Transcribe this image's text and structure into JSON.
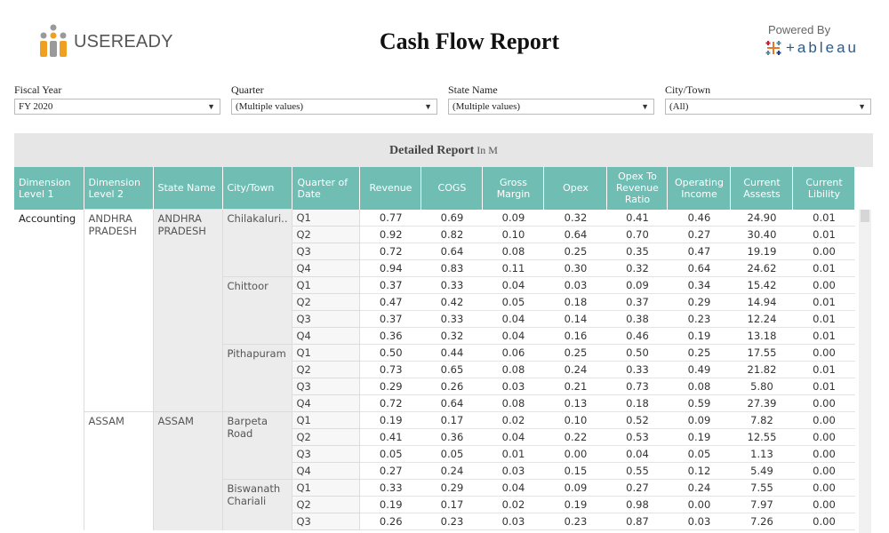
{
  "header": {
    "logo_text": "USEREADY",
    "title": "Cash Flow Report",
    "powered_by": "Powered By",
    "tableau": "+ableau"
  },
  "filters": [
    {
      "label": "Fiscal Year",
      "value": "FY 2020"
    },
    {
      "label": "Quarter",
      "value": "(Multiple values)"
    },
    {
      "label": "State Name",
      "value": "(Multiple values)"
    },
    {
      "label": "City/Town",
      "value": "(All)"
    }
  ],
  "report": {
    "title": "Detailed Report",
    "unit": "In M",
    "columns": [
      "Dimension Level 1",
      "Dimension Level 2",
      "State Name",
      "City/Town",
      "Quarter of Date",
      "Revenue",
      "COGS",
      "Gross Margin",
      "Opex",
      "Opex To Revenue Ratio",
      "Operating Income",
      "Current Assests",
      "Current Libility"
    ],
    "dimension_level_1": "Accounting",
    "groups": [
      {
        "level2": "ANDHRA PRADESH",
        "state": "ANDHRA PRADESH",
        "cities": [
          {
            "city": "Chilakaluri..",
            "rows": [
              [
                "Q1",
                "0.77",
                "0.69",
                "0.09",
                "0.32",
                "0.41",
                "0.46",
                "24.90",
                "0.01"
              ],
              [
                "Q2",
                "0.92",
                "0.82",
                "0.10",
                "0.64",
                "0.70",
                "0.27",
                "30.40",
                "0.01"
              ],
              [
                "Q3",
                "0.72",
                "0.64",
                "0.08",
                "0.25",
                "0.35",
                "0.47",
                "19.19",
                "0.00"
              ],
              [
                "Q4",
                "0.94",
                "0.83",
                "0.11",
                "0.30",
                "0.32",
                "0.64",
                "24.62",
                "0.01"
              ]
            ]
          },
          {
            "city": "Chittoor",
            "rows": [
              [
                "Q1",
                "0.37",
                "0.33",
                "0.04",
                "0.03",
                "0.09",
                "0.34",
                "15.42",
                "0.00"
              ],
              [
                "Q2",
                "0.47",
                "0.42",
                "0.05",
                "0.18",
                "0.37",
                "0.29",
                "14.94",
                "0.01"
              ],
              [
                "Q3",
                "0.37",
                "0.33",
                "0.04",
                "0.14",
                "0.38",
                "0.23",
                "12.24",
                "0.01"
              ],
              [
                "Q4",
                "0.36",
                "0.32",
                "0.04",
                "0.16",
                "0.46",
                "0.19",
                "13.18",
                "0.01"
              ]
            ]
          },
          {
            "city": "Pithapuram",
            "rows": [
              [
                "Q1",
                "0.50",
                "0.44",
                "0.06",
                "0.25",
                "0.50",
                "0.25",
                "17.55",
                "0.00"
              ],
              [
                "Q2",
                "0.73",
                "0.65",
                "0.08",
                "0.24",
                "0.33",
                "0.49",
                "21.82",
                "0.01"
              ],
              [
                "Q3",
                "0.29",
                "0.26",
                "0.03",
                "0.21",
                "0.73",
                "0.08",
                "5.80",
                "0.01"
              ],
              [
                "Q4",
                "0.72",
                "0.64",
                "0.08",
                "0.13",
                "0.18",
                "0.59",
                "27.39",
                "0.00"
              ]
            ]
          }
        ]
      },
      {
        "level2": "ASSAM",
        "state": "ASSAM",
        "cities": [
          {
            "city": "Barpeta Road",
            "rows": [
              [
                "Q1",
                "0.19",
                "0.17",
                "0.02",
                "0.10",
                "0.52",
                "0.09",
                "7.82",
                "0.00"
              ],
              [
                "Q2",
                "0.41",
                "0.36",
                "0.04",
                "0.22",
                "0.53",
                "0.19",
                "12.55",
                "0.00"
              ],
              [
                "Q3",
                "0.05",
                "0.05",
                "0.01",
                "0.00",
                "0.04",
                "0.05",
                "1.13",
                "0.00"
              ],
              [
                "Q4",
                "0.27",
                "0.24",
                "0.03",
                "0.15",
                "0.55",
                "0.12",
                "5.49",
                "0.00"
              ]
            ]
          },
          {
            "city": "Biswanath Chariali",
            "rows": [
              [
                "Q1",
                "0.33",
                "0.29",
                "0.04",
                "0.09",
                "0.27",
                "0.24",
                "7.55",
                "0.00"
              ],
              [
                "Q2",
                "0.19",
                "0.17",
                "0.02",
                "0.19",
                "0.98",
                "0.00",
                "7.97",
                "0.00"
              ],
              [
                "Q3",
                "0.26",
                "0.23",
                "0.03",
                "0.23",
                "0.87",
                "0.03",
                "7.26",
                "0.00"
              ]
            ]
          }
        ]
      }
    ]
  },
  "colors": {
    "header_bg": "#6fbdb3",
    "banner_bg": "#e6e6e6",
    "tableau_blue": "#2c5b86"
  }
}
